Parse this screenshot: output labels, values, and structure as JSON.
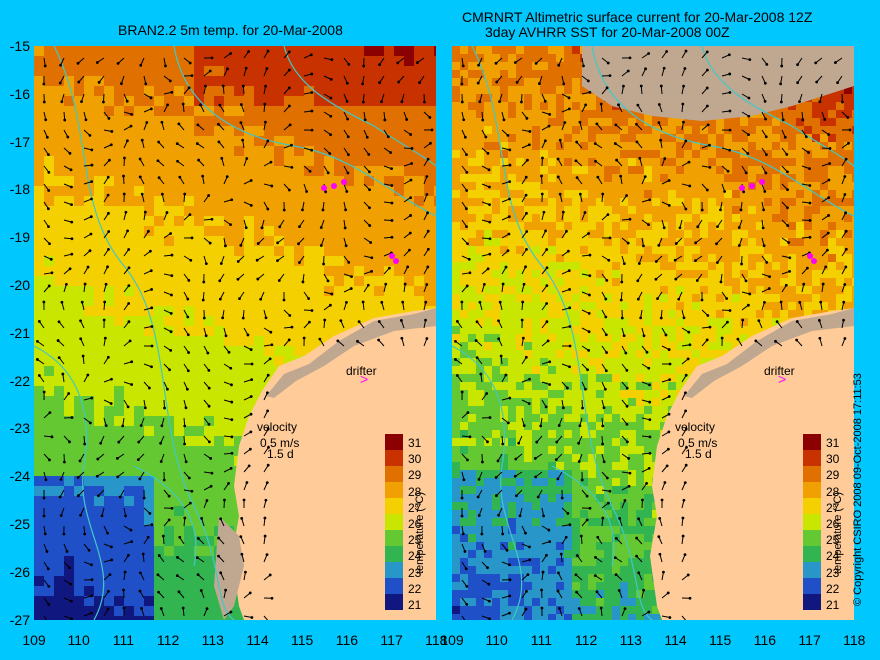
{
  "titles": {
    "left": "BRAN2.2 5m temp. for 20-Mar-2008",
    "right_line1": "CMRNRT Altimetric surface current for 20-Mar-2008 12Z",
    "right_line2": "3day AVHRR SST for 20-Mar-2008 00Z"
  },
  "axes": {
    "y_ticks": [
      "-15",
      "-16",
      "-17",
      "-18",
      "-19",
      "-20",
      "-21",
      "-22",
      "-23",
      "-24",
      "-25",
      "-26",
      "-27"
    ],
    "x_ticks": [
      "109",
      "110",
      "111",
      "112",
      "113",
      "114",
      "115",
      "116",
      "117",
      "118"
    ]
  },
  "annotations": {
    "drifter": "drifter",
    "velocity": "velocity",
    "velocity_scale": "0.5 m/s",
    "time_scale": "1.5 d"
  },
  "colorbar": {
    "label": "temperature (°C)",
    "ticks": [
      "31",
      "30",
      "29",
      "28",
      "27",
      "26",
      "25",
      "24",
      "23",
      "22",
      "21"
    ],
    "colors": [
      "#8b0000",
      "#c83200",
      "#e07000",
      "#f0a000",
      "#f5d000",
      "#c8e600",
      "#64c832",
      "#32b450",
      "#2896c8",
      "#2050c8",
      "#101880"
    ]
  },
  "copyright": "© Copyright CSIRO 2008   09-Oct-2008 17:11:53",
  "colors": {
    "background": "#00c8ff",
    "land": "#ffcc99",
    "grey_land": "#c0a890",
    "isobath": "#40c8c8",
    "drifter": "#ff00ff"
  }
}
